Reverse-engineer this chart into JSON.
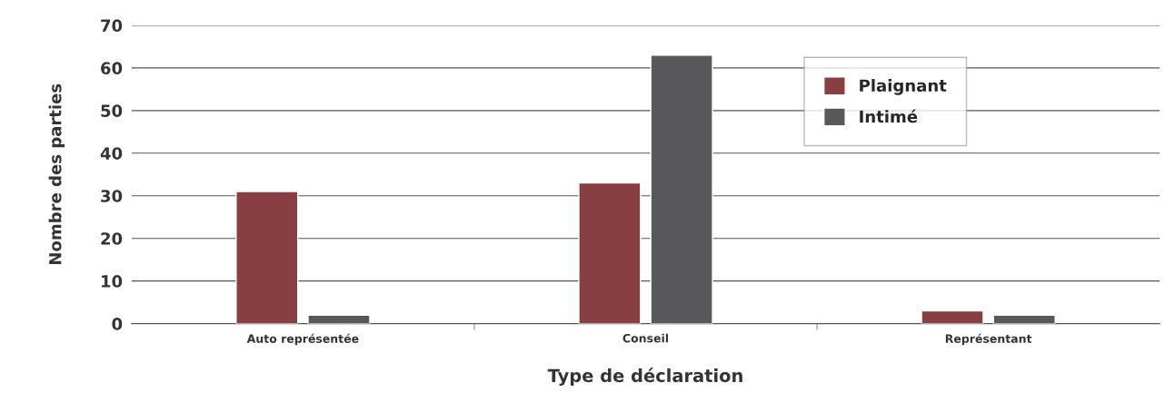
{
  "chart_data": {
    "type": "bar",
    "xlabel": "Type de déclaration",
    "ylabel": "Nombre des parties",
    "categories": [
      "Auto représentée",
      "Conseil",
      "Représentant"
    ],
    "series": [
      {
        "name": "Plaignant",
        "color": "#873f42",
        "values": [
          31,
          33,
          3
        ]
      },
      {
        "name": "Intimé",
        "color": "#58585a",
        "values": [
          2,
          63,
          2
        ]
      }
    ],
    "ylim": [
      0,
      70
    ],
    "yticks": [
      0,
      10,
      20,
      30,
      40,
      50,
      60,
      70
    ],
    "grid": "y",
    "legend": "top right"
  }
}
